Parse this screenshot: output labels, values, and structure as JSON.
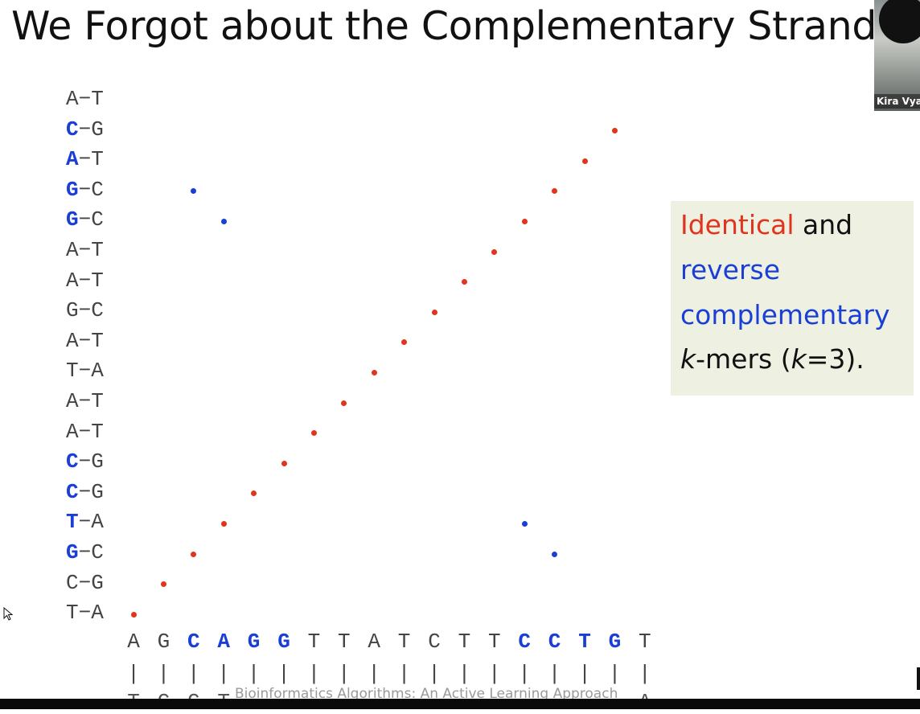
{
  "slide": {
    "title": "We Forgot about the Complementary Strand",
    "footer": "Bioinformatics Algorithms: An Active Learning Approach",
    "webcam_name": "Kira Vya"
  },
  "left_pairs": [
    {
      "a": "A",
      "b": "T",
      "hl": false
    },
    {
      "a": "C",
      "b": "G",
      "hl": true
    },
    {
      "a": "A",
      "b": "T",
      "hl": true
    },
    {
      "a": "G",
      "b": "C",
      "hl": true
    },
    {
      "a": "G",
      "b": "C",
      "hl": true
    },
    {
      "a": "A",
      "b": "T",
      "hl": false
    },
    {
      "a": "A",
      "b": "T",
      "hl": false
    },
    {
      "a": "G",
      "b": "C",
      "hl": false
    },
    {
      "a": "A",
      "b": "T",
      "hl": false
    },
    {
      "a": "T",
      "b": "A",
      "hl": false
    },
    {
      "a": "A",
      "b": "T",
      "hl": false
    },
    {
      "a": "A",
      "b": "T",
      "hl": false
    },
    {
      "a": "C",
      "b": "G",
      "hl": true
    },
    {
      "a": "C",
      "b": "G",
      "hl": true
    },
    {
      "a": "T",
      "b": "A",
      "hl": true
    },
    {
      "a": "G",
      "b": "C",
      "hl": true
    },
    {
      "a": "C",
      "b": "G",
      "hl": false
    },
    {
      "a": "T",
      "b": "A",
      "hl": false
    }
  ],
  "bottom_seq": [
    {
      "c": "A",
      "hl": false
    },
    {
      "c": "G",
      "hl": false
    },
    {
      "c": "C",
      "hl": true
    },
    {
      "c": "A",
      "hl": true
    },
    {
      "c": "G",
      "hl": true
    },
    {
      "c": "G",
      "hl": true
    },
    {
      "c": "T",
      "hl": false
    },
    {
      "c": "T",
      "hl": false
    },
    {
      "c": "A",
      "hl": false
    },
    {
      "c": "T",
      "hl": false
    },
    {
      "c": "C",
      "hl": false
    },
    {
      "c": "T",
      "hl": false
    },
    {
      "c": "T",
      "hl": false
    },
    {
      "c": "C",
      "hl": true
    },
    {
      "c": "C",
      "hl": true
    },
    {
      "c": "T",
      "hl": true
    },
    {
      "c": "G",
      "hl": true
    },
    {
      "c": "T",
      "hl": false
    }
  ],
  "lower_seq_visible": {
    "0": "T",
    "1": "C",
    "2": "G",
    "3": "T",
    "17": "A"
  },
  "dots": {
    "red": [
      [
        0,
        0
      ],
      [
        1,
        1
      ],
      [
        2,
        2
      ],
      [
        3,
        3
      ],
      [
        4,
        4
      ],
      [
        5,
        5
      ],
      [
        6,
        6
      ],
      [
        7,
        7
      ],
      [
        8,
        8
      ],
      [
        9,
        9
      ],
      [
        10,
        10
      ],
      [
        11,
        11
      ],
      [
        12,
        12
      ],
      [
        13,
        13
      ],
      [
        14,
        14
      ],
      [
        15,
        15
      ],
      [
        16,
        16
      ]
    ],
    "blue": [
      [
        2,
        14
      ],
      [
        3,
        13
      ],
      [
        13,
        3
      ],
      [
        14,
        2
      ]
    ]
  },
  "callout": {
    "identical": "Identical",
    "and": " and",
    "reverse": "reverse",
    "complementary": "complementary",
    "k1": "k",
    "mers": "-mers (",
    "k2": "k",
    "eq": "=3)."
  },
  "colors": {
    "red": "#e2331c",
    "blue": "#1a3fd6",
    "callout_bg": "#eef0e2"
  }
}
